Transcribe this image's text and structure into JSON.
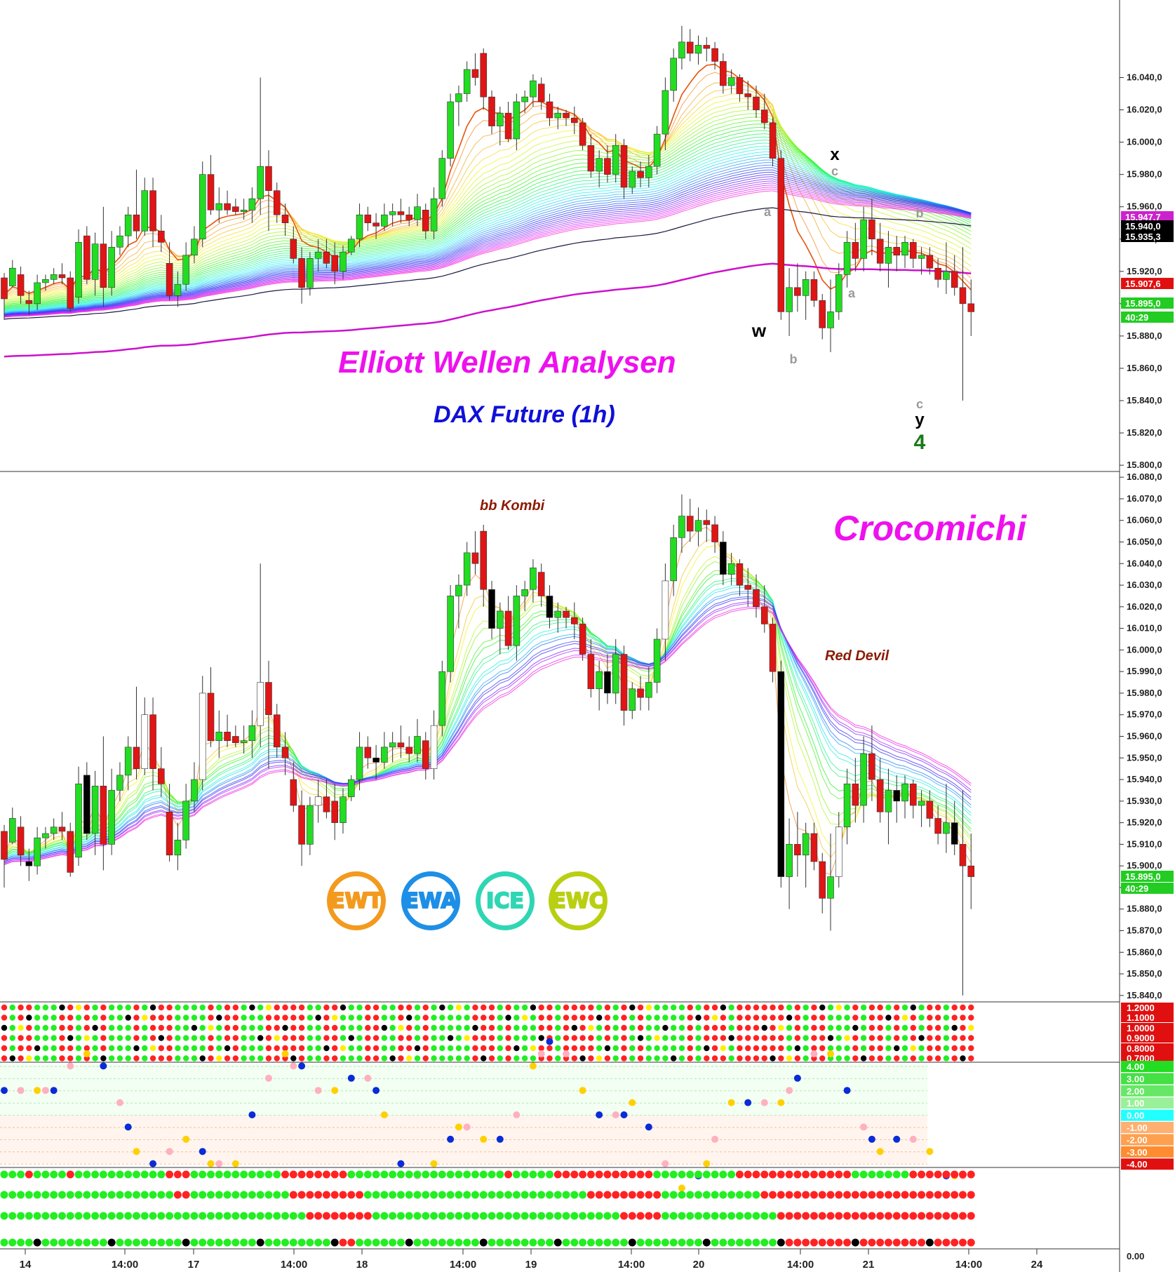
{
  "titles": {
    "main": "Elliott Wellen Analysen",
    "sub": "DAX Future (1h)",
    "indicator": "Crocomichi",
    "bb_kombi": "bb Kombi",
    "red_devil": "Red Devil"
  },
  "logos": [
    {
      "label": "EWT",
      "color": "#f39a1e"
    },
    {
      "label": "EWA",
      "color": "#1e8fe6"
    },
    {
      "label": "ICE",
      "color": "#2fd6b4"
    },
    {
      "label": "EWC",
      "color": "#b9cf12"
    }
  ],
  "wave_labels": [
    {
      "text": "w",
      "color": "#000000"
    },
    {
      "text": "a",
      "color": "#999999"
    },
    {
      "text": "b",
      "color": "#999999"
    },
    {
      "text": "x",
      "color": "#000000"
    },
    {
      "text": "c",
      "color": "#999999"
    },
    {
      "text": "a",
      "color": "#999999"
    },
    {
      "text": "b",
      "color": "#999999"
    },
    {
      "text": "c",
      "color": "#999999"
    },
    {
      "text": "y",
      "color": "#000000"
    },
    {
      "text": "4",
      "color": "#1a7a1a"
    }
  ],
  "chart_data": {
    "type": "candlestick",
    "instrument": "DAX Future (1h)",
    "x_ticks": [
      "14",
      "14:00",
      "17",
      "14:00",
      "18",
      "14:00",
      "19",
      "14:00",
      "20",
      "14:00",
      "21",
      "14:00",
      "24"
    ],
    "price_panel": {
      "y_ticks": [
        "16.040,0",
        "16.020,0",
        "16.000,0",
        "15.980,0",
        "15.960,0",
        "15.940,0",
        "15.920,0",
        "15.900,0",
        "15.880,0",
        "15.860,0",
        "15.840,0",
        "15.820,0",
        "15.800,0"
      ],
      "ylim": [
        15797,
        16088
      ],
      "price_tags": [
        {
          "text": "15.947,7",
          "color": "#cc22cc"
        },
        {
          "text": "15.940,0",
          "color": "#000000"
        },
        {
          "text": "15.935,3",
          "color": "#000000"
        },
        {
          "text": "15.907,6",
          "color": "#e01010"
        },
        {
          "text": "15.895,0",
          "color": "#22cc22"
        },
        {
          "text": "40:29",
          "color": "#22cc22"
        }
      ]
    },
    "indicator_panel": {
      "y_ticks": [
        "16.080,0",
        "16.070,0",
        "16.060,0",
        "16.050,0",
        "16.040,0",
        "16.030,0",
        "16.020,0",
        "16.010,0",
        "16.000,0",
        "15.990,0",
        "15.980,0",
        "15.970,0",
        "15.960,0",
        "15.950,0",
        "15.940,0",
        "15.930,0",
        "15.920,0",
        "15.910,0",
        "15.900,0",
        "15.890,0",
        "15.880,0",
        "15.870,0",
        "15.860,0",
        "15.850,0",
        "15.840,0"
      ],
      "ylim": [
        15838,
        16082
      ],
      "price_tags": [
        {
          "text": "15.895,0",
          "color": "#22cc22"
        },
        {
          "text": "40:29",
          "color": "#22cc22"
        }
      ]
    },
    "dot_panel_1": {
      "y_ticks": [
        "1.2000",
        "1.1000",
        "1.0000",
        "0.9000",
        "0.8000",
        "0.7000"
      ]
    },
    "dot_panel_2": {
      "y_ticks": [
        "4.00",
        "3.00",
        "2.00",
        "1.00",
        "0.00",
        "-1.00",
        "-2.00",
        "-3.00",
        "-4.00"
      ]
    },
    "bottom_panel": {
      "y_ticks": [
        "0.00"
      ]
    },
    "candles": [
      [
        15916,
        15919,
        15890,
        15903
      ],
      [
        15911,
        15927,
        15910,
        15922
      ],
      [
        15918,
        15923,
        15900,
        15905
      ],
      [
        15902,
        15908,
        15893,
        15900
      ],
      [
        15900,
        15918,
        15896,
        15913
      ],
      [
        15913,
        15918,
        15908,
        15915
      ],
      [
        15915,
        15922,
        15912,
        15918
      ],
      [
        15918,
        15925,
        15912,
        15916
      ],
      [
        15916,
        15920,
        15895,
        15897
      ],
      [
        15904,
        15946,
        15900,
        15938
      ],
      [
        15942,
        15948,
        15912,
        15915
      ],
      [
        15915,
        15944,
        15905,
        15937
      ],
      [
        15937,
        15960,
        15898,
        15910
      ],
      [
        15910,
        15945,
        15905,
        15935
      ],
      [
        15935,
        15948,
        15930,
        15942
      ],
      [
        15942,
        15960,
        15935,
        15955
      ],
      [
        15955,
        15983,
        15940,
        15945
      ],
      [
        15945,
        15978,
        15942,
        15970
      ],
      [
        15970,
        15978,
        15935,
        15945
      ],
      [
        15945,
        15955,
        15932,
        15938
      ],
      [
        15925,
        15938,
        15902,
        15905
      ],
      [
        15905,
        15920,
        15898,
        15912
      ],
      [
        15912,
        15938,
        15908,
        15930
      ],
      [
        15930,
        15948,
        15925,
        15940
      ],
      [
        15940,
        15988,
        15935,
        15980
      ],
      [
        15980,
        15992,
        15955,
        15958
      ],
      [
        15958,
        15972,
        15950,
        15962
      ],
      [
        15962,
        15970,
        15955,
        15958
      ],
      [
        15960,
        15965,
        15955,
        15957
      ],
      [
        15957,
        15965,
        15952,
        15958
      ],
      [
        15958,
        15972,
        15950,
        15965
      ],
      [
        15965,
        16040,
        15955,
        15985
      ],
      [
        15985,
        15995,
        15945,
        15970
      ],
      [
        15970,
        15975,
        15950,
        15955
      ],
      [
        15955,
        15962,
        15942,
        15950
      ],
      [
        15940,
        15948,
        15925,
        15928
      ],
      [
        15928,
        15935,
        15900,
        15910
      ],
      [
        15910,
        15932,
        15905,
        15928
      ],
      [
        15928,
        15940,
        15920,
        15932
      ],
      [
        15932,
        15940,
        15922,
        15925
      ],
      [
        15930,
        15938,
        15912,
        15920
      ],
      [
        15920,
        15936,
        15915,
        15932
      ],
      [
        15932,
        15942,
        15930,
        15940
      ],
      [
        15940,
        15962,
        15935,
        15955
      ],
      [
        15955,
        15960,
        15945,
        15950
      ],
      [
        15950,
        15956,
        15940,
        15948
      ],
      [
        15948,
        15962,
        15945,
        15955
      ],
      [
        15955,
        15962,
        15948,
        15957
      ],
      [
        15957,
        15965,
        15950,
        15955
      ],
      [
        15955,
        15960,
        15948,
        15952
      ],
      [
        15952,
        15968,
        15948,
        15960
      ],
      [
        15958,
        15962,
        15940,
        15945
      ],
      [
        15945,
        15972,
        15940,
        15965
      ],
      [
        15965,
        15995,
        15960,
        15990
      ],
      [
        15990,
        16030,
        15985,
        16025
      ],
      [
        16025,
        16035,
        16010,
        16030
      ],
      [
        16030,
        16050,
        16025,
        16045
      ],
      [
        16045,
        16055,
        16035,
        16040
      ],
      [
        16055,
        16058,
        16020,
        16028
      ],
      [
        16028,
        16032,
        16005,
        16010
      ],
      [
        16010,
        16022,
        15998,
        16018
      ],
      [
        16018,
        16025,
        16000,
        16002
      ],
      [
        16002,
        16030,
        15995,
        16025
      ],
      [
        16025,
        16032,
        16018,
        16028
      ],
      [
        16028,
        16042,
        16022,
        16038
      ],
      [
        16036,
        16040,
        16020,
        16025
      ],
      [
        16025,
        16030,
        16010,
        16015
      ],
      [
        16015,
        16022,
        16008,
        16018
      ],
      [
        16018,
        16020,
        16010,
        16015
      ],
      [
        16015,
        16022,
        16005,
        16012
      ],
      [
        16012,
        16015,
        15995,
        15998
      ],
      [
        15998,
        16005,
        15978,
        15982
      ],
      [
        15982,
        15995,
        15972,
        15990
      ],
      [
        15990,
        15998,
        15975,
        15980
      ],
      [
        15980,
        16005,
        15975,
        15998
      ],
      [
        15998,
        16002,
        15965,
        15972
      ],
      [
        15972,
        15985,
        15968,
        15982
      ],
      [
        15982,
        15988,
        15972,
        15978
      ],
      [
        15978,
        15992,
        15972,
        15985
      ],
      [
        15985,
        16010,
        15980,
        16005
      ],
      [
        16005,
        16040,
        15995,
        16032
      ],
      [
        16032,
        16058,
        16025,
        16052
      ],
      [
        16052,
        16072,
        16045,
        16062
      ],
      [
        16062,
        16070,
        16050,
        16055
      ],
      [
        16055,
        16066,
        16048,
        16060
      ],
      [
        16060,
        16065,
        16050,
        16058
      ],
      [
        16058,
        16062,
        16045,
        16050
      ],
      [
        16050,
        16055,
        16030,
        16035
      ],
      [
        16035,
        16045,
        16030,
        16040
      ],
      [
        16040,
        16042,
        16025,
        16030
      ],
      [
        16030,
        16038,
        16020,
        16028
      ],
      [
        16028,
        16035,
        16015,
        16020
      ],
      [
        16020,
        16030,
        16008,
        16012
      ],
      [
        16012,
        16015,
        15985,
        15990
      ],
      [
        15990,
        15995,
        15890,
        15895
      ],
      [
        15895,
        15922,
        15880,
        15910
      ],
      [
        15910,
        15925,
        15895,
        15905
      ],
      [
        15905,
        15920,
        15890,
        15915
      ],
      [
        15915,
        15920,
        15898,
        15902
      ],
      [
        15902,
        15906,
        15878,
        15885
      ],
      [
        15885,
        15915,
        15870,
        15895
      ],
      [
        15895,
        15925,
        15890,
        15918
      ],
      [
        15918,
        15945,
        15910,
        15938
      ],
      [
        15938,
        15950,
        15920,
        15928
      ],
      [
        15928,
        15960,
        15920,
        15952
      ],
      [
        15952,
        15965,
        15930,
        15940
      ],
      [
        15940,
        15950,
        15920,
        15925
      ],
      [
        15925,
        15945,
        15910,
        15935
      ],
      [
        15935,
        15942,
        15920,
        15930
      ],
      [
        15930,
        15942,
        15922,
        15938
      ],
      [
        15938,
        15940,
        15922,
        15928
      ],
      [
        15928,
        15935,
        15918,
        15930
      ],
      [
        15930,
        15935,
        15918,
        15922
      ],
      [
        15922,
        15928,
        15910,
        15915
      ],
      [
        15915,
        15938,
        15906,
        15920
      ],
      [
        15920,
        15930,
        15905,
        15910
      ],
      [
        15910,
        15935,
        15840,
        15900
      ],
      [
        15900,
        15915,
        15880,
        15895
      ]
    ]
  }
}
